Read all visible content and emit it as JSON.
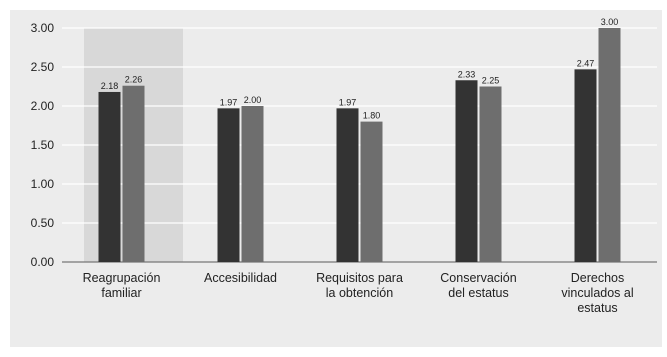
{
  "chart_data": {
    "type": "bar",
    "title": "",
    "xlabel": "",
    "ylabel": "",
    "ylim": [
      0,
      3
    ],
    "yticks": [
      "0.00",
      "0.50",
      "1.00",
      "1.50",
      "2.00",
      "2.50",
      "3.00"
    ],
    "grid": true,
    "legend": "none",
    "highlighted_category": 0,
    "categories": [
      [
        "Reagrupación",
        "familiar"
      ],
      [
        "Accesibilidad"
      ],
      [
        "Requisitos para",
        "la obtención"
      ],
      [
        "Conservación",
        "del estatus"
      ],
      [
        "Derechos",
        "vinculados al",
        "estatus"
      ]
    ],
    "series": [
      {
        "values": [
          2.18,
          1.97,
          1.97,
          2.33,
          2.47
        ],
        "labels": [
          "2.18",
          "1.97",
          "1.97",
          "2.33",
          "2.47"
        ],
        "color": "#333333"
      },
      {
        "values": [
          2.26,
          2.0,
          1.8,
          2.25,
          3.0
        ],
        "labels": [
          "2.26",
          "2.00",
          "1.80",
          "2.25",
          "3.00"
        ],
        "color": "#6e6e6e"
      }
    ],
    "colors": {
      "background": "#ececec",
      "highlight": "#d8d8d8",
      "grid": "#ffffff",
      "text": "#222222"
    }
  }
}
